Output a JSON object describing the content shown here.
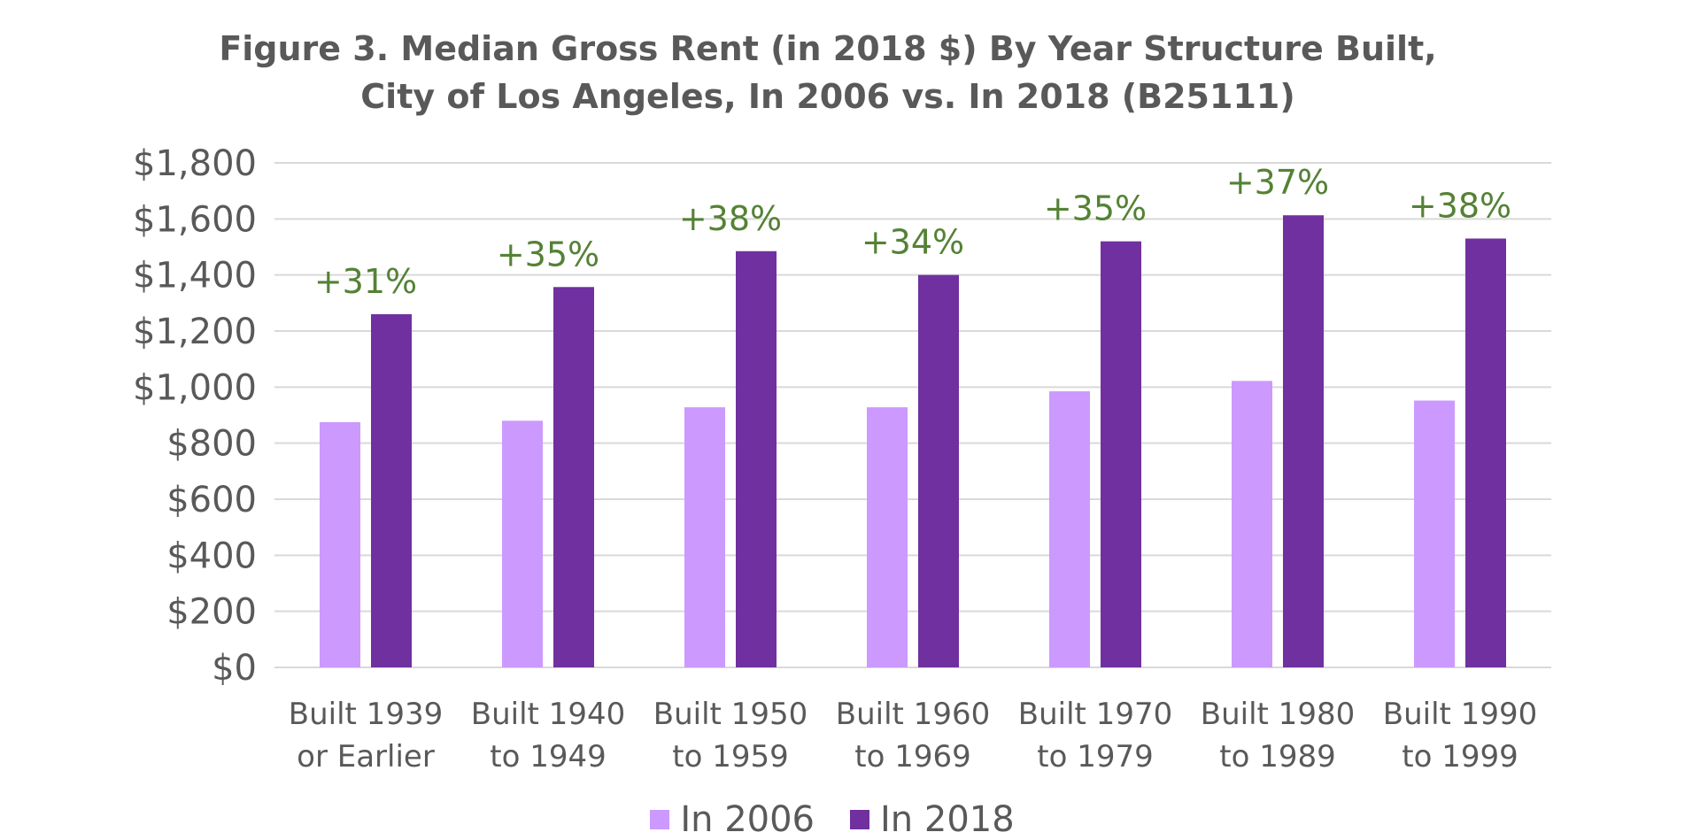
{
  "chart_data": {
    "type": "bar",
    "title": "Figure 3. Median Gross Rent (in 2018 $) By Year Structure Built,",
    "subtitle": "City of Los Angeles, In 2006 vs. In 2018 (B25111)",
    "xlabel": "",
    "ylabel": "",
    "ylim": [
      0,
      1800
    ],
    "yticks": [
      0,
      200,
      400,
      600,
      800,
      1000,
      1200,
      1400,
      1600,
      1800
    ],
    "ytick_labels": [
      "$0",
      "$200",
      "$400",
      "$600",
      "$800",
      "$1,000",
      "$1,200",
      "$1,400",
      "$1,600",
      "$1,800"
    ],
    "grid": true,
    "legend_position": "bottom",
    "categories": [
      [
        "Built 1939",
        "or Earlier"
      ],
      [
        "Built 1940",
        "to 1949"
      ],
      [
        "Built 1950",
        "to 1959"
      ],
      [
        "Built 1960",
        "to 1969"
      ],
      [
        "Built 1970",
        "to 1979"
      ],
      [
        "Built 1980",
        "to 1989"
      ],
      [
        "Built 1990",
        "to 1999"
      ]
    ],
    "series": [
      {
        "name": "In 2006",
        "color": "#cc99ff",
        "values": [
          875,
          880,
          928,
          928,
          985,
          1022,
          952
        ]
      },
      {
        "name": "In 2018",
        "color": "#7030a0",
        "values": [
          1260,
          1357,
          1485,
          1400,
          1520,
          1613,
          1530
        ]
      }
    ],
    "annotations": [
      "+31%",
      "+35%",
      "+38%",
      "+34%",
      "+35%",
      "+37%",
      "+38%"
    ],
    "annotation_color": "#548235",
    "grid_color": "#d9d9d9",
    "text_color": "#595959"
  }
}
